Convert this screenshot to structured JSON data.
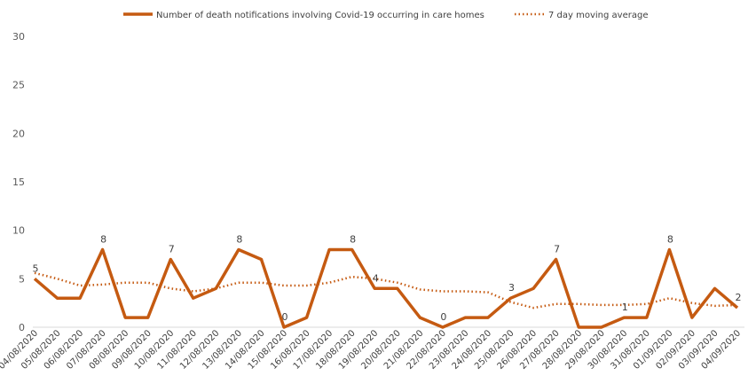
{
  "chart_data": {
    "type": "line",
    "categories": [
      "04/08/2020",
      "05/08/2020",
      "06/08/2020",
      "07/08/2020",
      "08/08/2020",
      "09/08/2020",
      "10/08/2020",
      "11/08/2020",
      "12/08/2020",
      "13/08/2020",
      "14/08/2020",
      "15/08/2020",
      "16/08/2020",
      "17/08/2020",
      "18/08/2020",
      "19/08/2020",
      "20/08/2020",
      "21/08/2020",
      "22/08/2020",
      "23/08/2020",
      "24/08/2020",
      "25/08/2020",
      "26/08/2020",
      "27/08/2020",
      "28/08/2020",
      "29/08/2020",
      "30/08/2020",
      "31/08/2020",
      "01/09/2020",
      "02/09/2020",
      "03/09/2020",
      "04/09/2020"
    ],
    "series": [
      {
        "name": "Number of death notifications involving Covid-19 occurring in care homes",
        "values": [
          5,
          3,
          3,
          8,
          1,
          1,
          7,
          3,
          4,
          8,
          7,
          0,
          1,
          8,
          8,
          4,
          4,
          1,
          0,
          1,
          1,
          3,
          4,
          7,
          0,
          0,
          1,
          1,
          8,
          1,
          4,
          2
        ],
        "color": "#C55A11",
        "style": "solid"
      },
      {
        "name": "7 day moving average",
        "values": [
          5.6,
          5.0,
          4.3,
          4.4,
          4.6,
          4.6,
          4.0,
          3.7,
          4.0,
          4.6,
          4.6,
          4.3,
          4.3,
          4.6,
          5.2,
          5.0,
          4.6,
          3.9,
          3.7,
          3.7,
          3.6,
          2.6,
          2.0,
          2.4,
          2.4,
          2.3,
          2.3,
          2.4,
          3.0,
          2.5,
          2.2,
          2.3
        ],
        "color": "#C55A11",
        "style": "dotted"
      }
    ],
    "data_labels": [
      {
        "index": 0,
        "text": "5"
      },
      {
        "index": 3,
        "text": "8"
      },
      {
        "index": 6,
        "text": "7"
      },
      {
        "index": 9,
        "text": "8"
      },
      {
        "index": 11,
        "text": "0"
      },
      {
        "index": 14,
        "text": "8"
      },
      {
        "index": 15,
        "text": "4"
      },
      {
        "index": 18,
        "text": "0"
      },
      {
        "index": 21,
        "text": "3"
      },
      {
        "index": 23,
        "text": "7"
      },
      {
        "index": 26,
        "text": "1"
      },
      {
        "index": 28,
        "text": "8"
      },
      {
        "index": 31,
        "text": "2"
      }
    ],
    "yticks": [
      "0",
      "5",
      "10",
      "15",
      "20",
      "25",
      "30"
    ],
    "ylim": [
      0,
      30
    ],
    "grid": false,
    "legend_position": "top"
  }
}
